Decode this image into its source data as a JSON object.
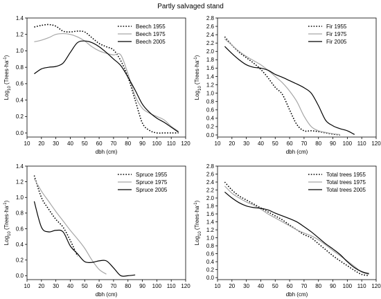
{
  "figure_title": "Partly salvaged stand",
  "styles": {
    "line_color": "#000000",
    "light_color": "#a6a6a6",
    "axis_color": "#000000"
  },
  "chart_data": [
    {
      "type": "line",
      "xlabel": "dbh (cm)",
      "ylabel": "Log10 (Trees·ha-1)",
      "xlim": [
        10,
        120
      ],
      "ylim": [
        -0.05,
        1.4
      ],
      "xticks": [
        "10",
        "20",
        "30",
        "40",
        "50",
        "60",
        "70",
        "80",
        "90",
        "100",
        "110",
        "120"
      ],
      "yticks": [
        "0.0",
        "0.2",
        "0.4",
        "0.6",
        "0.8",
        "1.0",
        "1.2",
        "1.4"
      ],
      "legend_position": "top-right",
      "series": [
        {
          "name": "Beech 1955",
          "style": "dotted",
          "x": [
            15,
            20,
            25,
            30,
            35,
            40,
            45,
            50,
            55,
            60,
            65,
            70,
            75,
            80,
            85,
            90,
            95,
            100,
            105,
            110,
            115
          ],
          "y": [
            1.29,
            1.31,
            1.32,
            1.3,
            1.24,
            1.23,
            1.24,
            1.23,
            1.16,
            1.09,
            1.05,
            1.01,
            0.88,
            0.68,
            0.4,
            0.12,
            0.03,
            0.0,
            0.0,
            0.0,
            0.0
          ]
        },
        {
          "name": "Beech 1975",
          "style": "gray",
          "x": [
            15,
            20,
            25,
            30,
            35,
            40,
            45,
            50,
            55,
            60,
            65,
            70,
            75,
            80,
            85,
            90,
            95,
            100,
            105,
            110,
            115
          ],
          "y": [
            1.11,
            1.13,
            1.16,
            1.2,
            1.21,
            1.2,
            1.17,
            1.12,
            1.05,
            1.0,
            0.97,
            0.95,
            0.95,
            0.72,
            0.45,
            0.3,
            0.24,
            0.2,
            0.16,
            0.08,
            0.02
          ]
        },
        {
          "name": "Beech 2005",
          "style": "solid",
          "x": [
            15,
            20,
            25,
            30,
            35,
            40,
            45,
            50,
            55,
            60,
            65,
            70,
            75,
            80,
            85,
            90,
            95,
            100,
            105,
            110,
            115
          ],
          "y": [
            0.72,
            0.78,
            0.8,
            0.81,
            0.85,
            0.98,
            1.1,
            1.12,
            1.1,
            1.05,
            0.98,
            0.9,
            0.82,
            0.68,
            0.52,
            0.35,
            0.25,
            0.18,
            0.13,
            0.07,
            0.01
          ]
        }
      ]
    },
    {
      "type": "line",
      "xlabel": "dbh (cm)",
      "ylabel": "Log10 (Trees·ha-1)",
      "xlim": [
        10,
        120
      ],
      "ylim": [
        -0.05,
        2.8
      ],
      "xticks": [
        "10",
        "20",
        "30",
        "40",
        "50",
        "60",
        "70",
        "80",
        "90",
        "100",
        "110",
        "120"
      ],
      "yticks": [
        "0.0",
        "0.2",
        "0.4",
        "0.6",
        "0.8",
        "1.0",
        "1.2",
        "1.4",
        "1.6",
        "1.8",
        "2.0",
        "2.2",
        "2.4",
        "2.6",
        "2.8"
      ],
      "legend_position": "top-right",
      "series": [
        {
          "name": "Fir 1955",
          "style": "dotted",
          "x": [
            15,
            20,
            25,
            30,
            35,
            40,
            45,
            50,
            55,
            60,
            65,
            70,
            75,
            80,
            85,
            90,
            95
          ],
          "y": [
            2.35,
            2.15,
            1.98,
            1.85,
            1.72,
            1.57,
            1.37,
            1.14,
            0.97,
            0.6,
            0.25,
            0.1,
            0.1,
            0.08,
            0.05,
            0.02,
            0.0
          ]
        },
        {
          "name": "Fir 1975",
          "style": "gray",
          "x": [
            15,
            20,
            25,
            30,
            35,
            40,
            45,
            50,
            55,
            60,
            65,
            70,
            75,
            80,
            85,
            90,
            95
          ],
          "y": [
            2.3,
            2.15,
            2.0,
            1.88,
            1.78,
            1.68,
            1.55,
            1.4,
            1.25,
            1.05,
            0.8,
            0.45,
            0.2,
            0.1,
            0.06,
            0.03,
            0.01
          ]
        },
        {
          "name": "Fir 2005",
          "style": "solid",
          "x": [
            15,
            20,
            25,
            30,
            35,
            40,
            45,
            50,
            55,
            60,
            65,
            70,
            75,
            80,
            85,
            90,
            95,
            100,
            105
          ],
          "y": [
            2.12,
            1.95,
            1.8,
            1.68,
            1.62,
            1.6,
            1.55,
            1.45,
            1.38,
            1.3,
            1.22,
            1.13,
            1.0,
            0.7,
            0.35,
            0.22,
            0.15,
            0.1,
            0.01
          ]
        }
      ]
    },
    {
      "type": "line",
      "xlabel": "dbh (cm)",
      "ylabel": "Log10 (Trees·ha-1)",
      "xlim": [
        10,
        120
      ],
      "ylim": [
        -0.05,
        1.4
      ],
      "xticks": [
        "10",
        "20",
        "30",
        "40",
        "50",
        "60",
        "70",
        "80",
        "90",
        "100",
        "110",
        "120"
      ],
      "yticks": [
        "0.0",
        "0.2",
        "0.4",
        "0.6",
        "0.8",
        "1.0",
        "1.2",
        "1.4"
      ],
      "legend_position": "top-right",
      "series": [
        {
          "name": "Spruce 1955",
          "style": "dotted",
          "x": [
            15,
            20,
            25,
            30,
            35,
            40,
            45
          ],
          "y": [
            1.28,
            1.0,
            0.85,
            0.72,
            0.62,
            0.45,
            0.25
          ]
        },
        {
          "name": "Spruce 1975",
          "style": "gray",
          "x": [
            15,
            20,
            25,
            30,
            35,
            40,
            45,
            50,
            55,
            60,
            65
          ],
          "y": [
            1.24,
            1.08,
            0.95,
            0.82,
            0.7,
            0.58,
            0.47,
            0.35,
            0.2,
            0.08,
            0.02
          ]
        },
        {
          "name": "Spruce 2005",
          "style": "solid",
          "x": [
            15,
            20,
            25,
            30,
            35,
            40,
            45,
            50,
            55,
            60,
            65,
            70,
            75,
            80,
            85
          ],
          "y": [
            0.95,
            0.62,
            0.56,
            0.58,
            0.56,
            0.38,
            0.28,
            0.18,
            0.17,
            0.19,
            0.19,
            0.1,
            0.0,
            0.0,
            0.01
          ]
        }
      ]
    },
    {
      "type": "line",
      "xlabel": "dbh (cm)",
      "ylabel": "Log10 (Trees·ha-1)",
      "xlim": [
        10,
        120
      ],
      "ylim": [
        -0.05,
        2.8
      ],
      "xticks": [
        "10",
        "20",
        "30",
        "40",
        "50",
        "60",
        "70",
        "80",
        "90",
        "100",
        "110",
        "120"
      ],
      "yticks": [
        "0.0",
        "0.2",
        "0.4",
        "0.6",
        "0.8",
        "1.0",
        "1.2",
        "1.4",
        "1.6",
        "1.8",
        "2.0",
        "2.2",
        "2.4",
        "2.6",
        "2.8"
      ],
      "legend_position": "top-right",
      "series": [
        {
          "name": "Total trees 1955",
          "style": "dotted",
          "x": [
            15,
            20,
            25,
            30,
            35,
            40,
            45,
            50,
            55,
            60,
            65,
            70,
            75,
            80,
            85,
            90,
            95,
            100,
            105,
            110,
            115
          ],
          "y": [
            2.4,
            2.2,
            2.05,
            1.95,
            1.85,
            1.75,
            1.65,
            1.55,
            1.45,
            1.32,
            1.2,
            1.08,
            1.0,
            0.85,
            0.7,
            0.55,
            0.42,
            0.3,
            0.18,
            0.08,
            0.05
          ]
        },
        {
          "name": "Total trees 1975",
          "style": "gray",
          "x": [
            15,
            20,
            25,
            30,
            35,
            40,
            45,
            50,
            55,
            60,
            65,
            70,
            75,
            80,
            85,
            90,
            95,
            100,
            105,
            110,
            115
          ],
          "y": [
            2.3,
            2.12,
            2.0,
            1.9,
            1.82,
            1.72,
            1.6,
            1.5,
            1.4,
            1.3,
            1.2,
            1.12,
            1.05,
            0.95,
            0.82,
            0.68,
            0.55,
            0.42,
            0.28,
            0.14,
            0.08
          ]
        },
        {
          "name": "Total trees 2005",
          "style": "solid",
          "x": [
            15,
            20,
            25,
            30,
            35,
            40,
            45,
            50,
            55,
            60,
            65,
            70,
            75,
            80,
            85,
            90,
            95,
            100,
            105,
            110,
            115
          ],
          "y": [
            2.15,
            2.0,
            1.88,
            1.8,
            1.76,
            1.74,
            1.7,
            1.62,
            1.55,
            1.48,
            1.4,
            1.28,
            1.15,
            1.0,
            0.85,
            0.72,
            0.58,
            0.4,
            0.25,
            0.15,
            0.1
          ]
        }
      ]
    }
  ]
}
